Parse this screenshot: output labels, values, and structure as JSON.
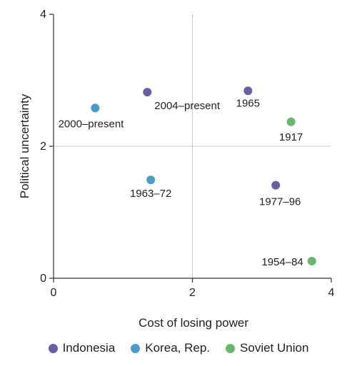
{
  "chart_data": {
    "type": "scatter",
    "title": "",
    "xlabel": "Cost of losing power",
    "ylabel": "Political uncertainty",
    "xlim": [
      0,
      4
    ],
    "ylim": [
      0,
      4
    ],
    "x_ticks": [
      "0",
      "2",
      "4"
    ],
    "y_ticks": [
      "0",
      "2",
      "4"
    ],
    "grid": "reference lines at x=2 and y=2",
    "legend_position": "bottom",
    "series": [
      {
        "name": "Indonesia",
        "color": "#6a5fa7",
        "points": [
          {
            "x": 1.35,
            "y": 2.82,
            "label": "2004–present"
          },
          {
            "x": 2.8,
            "y": 2.84,
            "label": "1965"
          },
          {
            "x": 3.2,
            "y": 1.41,
            "label": "1977–96"
          }
        ]
      },
      {
        "name": "Korea, Rep.",
        "color": "#4a9acb",
        "points": [
          {
            "x": 0.6,
            "y": 2.58,
            "label": "2000–present"
          },
          {
            "x": 1.4,
            "y": 1.49,
            "label": "1963–72"
          }
        ]
      },
      {
        "name": "Soviet Union",
        "color": "#66b96a",
        "points": [
          {
            "x": 3.42,
            "y": 2.37,
            "label": "1917"
          },
          {
            "x": 3.72,
            "y": 0.26,
            "label": "1954–84"
          }
        ]
      }
    ]
  }
}
